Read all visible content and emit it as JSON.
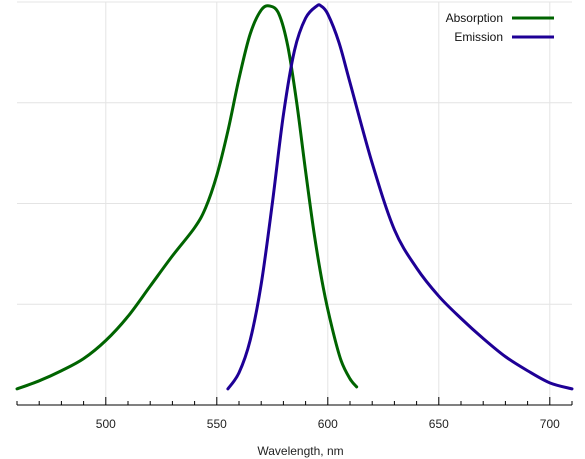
{
  "chart_data": {
    "type": "line",
    "title": "",
    "xlabel": "Wavelength, nm",
    "ylabel": "",
    "xlim": [
      460,
      710
    ],
    "ylim": [
      0,
      1.0
    ],
    "x_ticks": [
      500,
      550,
      600,
      650,
      700
    ],
    "x_tick_labels": [
      "500",
      "550",
      "600",
      "650",
      "700"
    ],
    "x_minor_step": 10,
    "y_grid_values": [
      0.25,
      0.5,
      0.75,
      1.0
    ],
    "grid": true,
    "legend_position": "top-right",
    "series": [
      {
        "name": "Absorption",
        "color": "#006400",
        "x": [
          460,
          470,
          480,
          490,
          500,
          510,
          520,
          530,
          540,
          545,
          550,
          555,
          560,
          565,
          570,
          574,
          578,
          582,
          586,
          590,
          594,
          598,
          602,
          606,
          610,
          613
        ],
        "y": [
          0.04,
          0.06,
          0.085,
          0.115,
          0.16,
          0.22,
          0.295,
          0.37,
          0.44,
          0.49,
          0.57,
          0.68,
          0.81,
          0.92,
          0.98,
          0.99,
          0.97,
          0.89,
          0.75,
          0.58,
          0.42,
          0.29,
          0.19,
          0.11,
          0.065,
          0.045
        ]
      },
      {
        "name": "Emission",
        "color": "#1e0096",
        "x": [
          555,
          560,
          565,
          570,
          575,
          580,
          585,
          590,
          595,
          597,
          600,
          605,
          610,
          620,
          630,
          640,
          650,
          660,
          670,
          680,
          690,
          700,
          710
        ],
        "y": [
          0.04,
          0.08,
          0.16,
          0.3,
          0.5,
          0.72,
          0.88,
          0.96,
          0.99,
          0.99,
          0.97,
          0.9,
          0.8,
          0.6,
          0.435,
          0.34,
          0.27,
          0.215,
          0.165,
          0.12,
          0.085,
          0.055,
          0.04
        ]
      }
    ]
  }
}
